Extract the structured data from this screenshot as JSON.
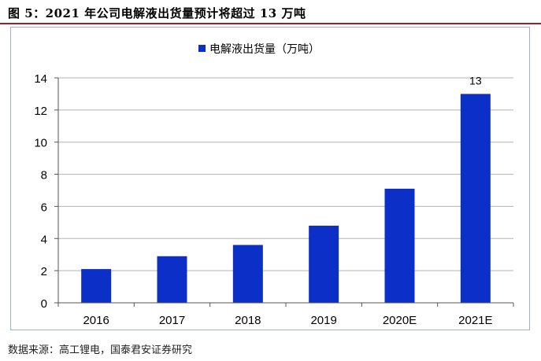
{
  "figure": {
    "title": "图 5：2021 年公司电解液出货量预计将超过 13  万吨",
    "source": "数据来源：高工锂电，国泰君安证券研究"
  },
  "colors": {
    "bar": "#0b2fc7",
    "grid": "#b3b3b3",
    "rule": "#9c1e2e"
  },
  "chart_data": {
    "type": "bar",
    "categories": [
      "2016",
      "2017",
      "2018",
      "2019",
      "2020E",
      "2021E"
    ],
    "series": [
      {
        "name": "电解液出货量（万吨）",
        "values": [
          2.1,
          2.9,
          3.6,
          4.8,
          7.1,
          13
        ]
      }
    ],
    "data_labels": [
      "",
      "",
      "",
      "",
      "",
      "13"
    ],
    "ylim": [
      0,
      14
    ],
    "yticks": [
      0,
      2,
      4,
      6,
      8,
      10,
      12,
      14
    ],
    "grid": true,
    "legend": "top-center",
    "xlabel": "",
    "ylabel": ""
  }
}
